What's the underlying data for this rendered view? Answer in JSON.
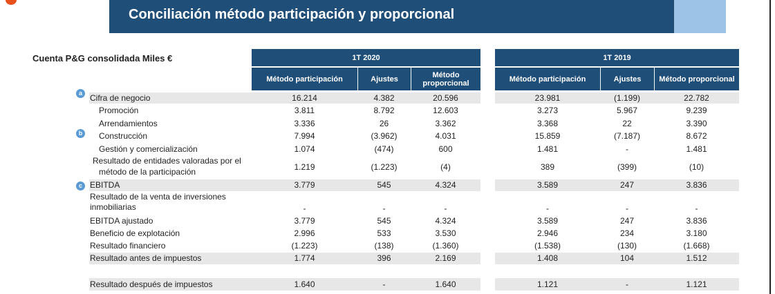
{
  "header": {
    "title": "Conciliación método participación y proporcional",
    "table_title": "Cuenta P&G consolidada Miles €"
  },
  "periods": [
    {
      "label": "1T 2020",
      "columns": [
        "Método participación",
        "Ajustes",
        "Método proporcional"
      ]
    },
    {
      "label": "1T 2019",
      "columns": [
        "Método participación",
        "Ajustes",
        "Método proporcional"
      ]
    }
  ],
  "rows": [
    {
      "label": "Cifra de negocio",
      "badge": "a",
      "values": [
        "16.214",
        "4.382",
        "20.596",
        "23.981",
        "(1.199)",
        "22.782"
      ]
    },
    {
      "label": "Promoción",
      "values": [
        "3.811",
        "8.792",
        "12.603",
        "3.273",
        "5.967",
        "9.239"
      ]
    },
    {
      "label": "Arrendamientos",
      "values": [
        "3.336",
        "26",
        "3.362",
        "3.368",
        "22",
        "3.390"
      ]
    },
    {
      "label": "Construcción",
      "badge": "b",
      "values": [
        "7.994",
        "(3.962)",
        "4.031",
        "15.859",
        "(7.187)",
        "8.672"
      ]
    },
    {
      "label": "Gestión y comercialización",
      "values": [
        "1.074",
        "(474)",
        "600",
        "1.481",
        "-",
        "1.481"
      ]
    },
    {
      "label_line1": "Resultado de entidades valoradas por el",
      "label_line2": "método de la participación",
      "values": [
        "1.219",
        "(1.223)",
        "(4)",
        "389",
        "(399)",
        "(10)"
      ]
    },
    {
      "label": "EBITDA",
      "badge": "c",
      "values": [
        "3.779",
        "545",
        "4.324",
        "3.589",
        "247",
        "3.836"
      ]
    },
    {
      "label_line1": "Resultado de la venta de inversiones",
      "label_line2": "inmobiliarias",
      "values": [
        "-",
        "-",
        "-",
        "-",
        "-",
        "-"
      ]
    },
    {
      "label": "EBITDA ajustado",
      "values": [
        "3.779",
        "545",
        "4.324",
        "3.589",
        "247",
        "3.836"
      ]
    },
    {
      "label": "Beneficio de explotación",
      "values": [
        "2.996",
        "533",
        "3.530",
        "2.946",
        "234",
        "3.180"
      ]
    },
    {
      "label": "Resultado financiero",
      "values": [
        "(1.223)",
        "(138)",
        "(1.360)",
        "(1.538)",
        "(130)",
        "(1.668)"
      ]
    },
    {
      "label": "Resultado antes de impuestos",
      "values": [
        "1.774",
        "396",
        "2.169",
        "1.408",
        "104",
        "1.512"
      ]
    },
    {
      "label": "Resultado después de impuestos",
      "values": [
        "1.640",
        "-",
        "1.640",
        "1.121",
        "-",
        "1.121"
      ]
    }
  ]
}
